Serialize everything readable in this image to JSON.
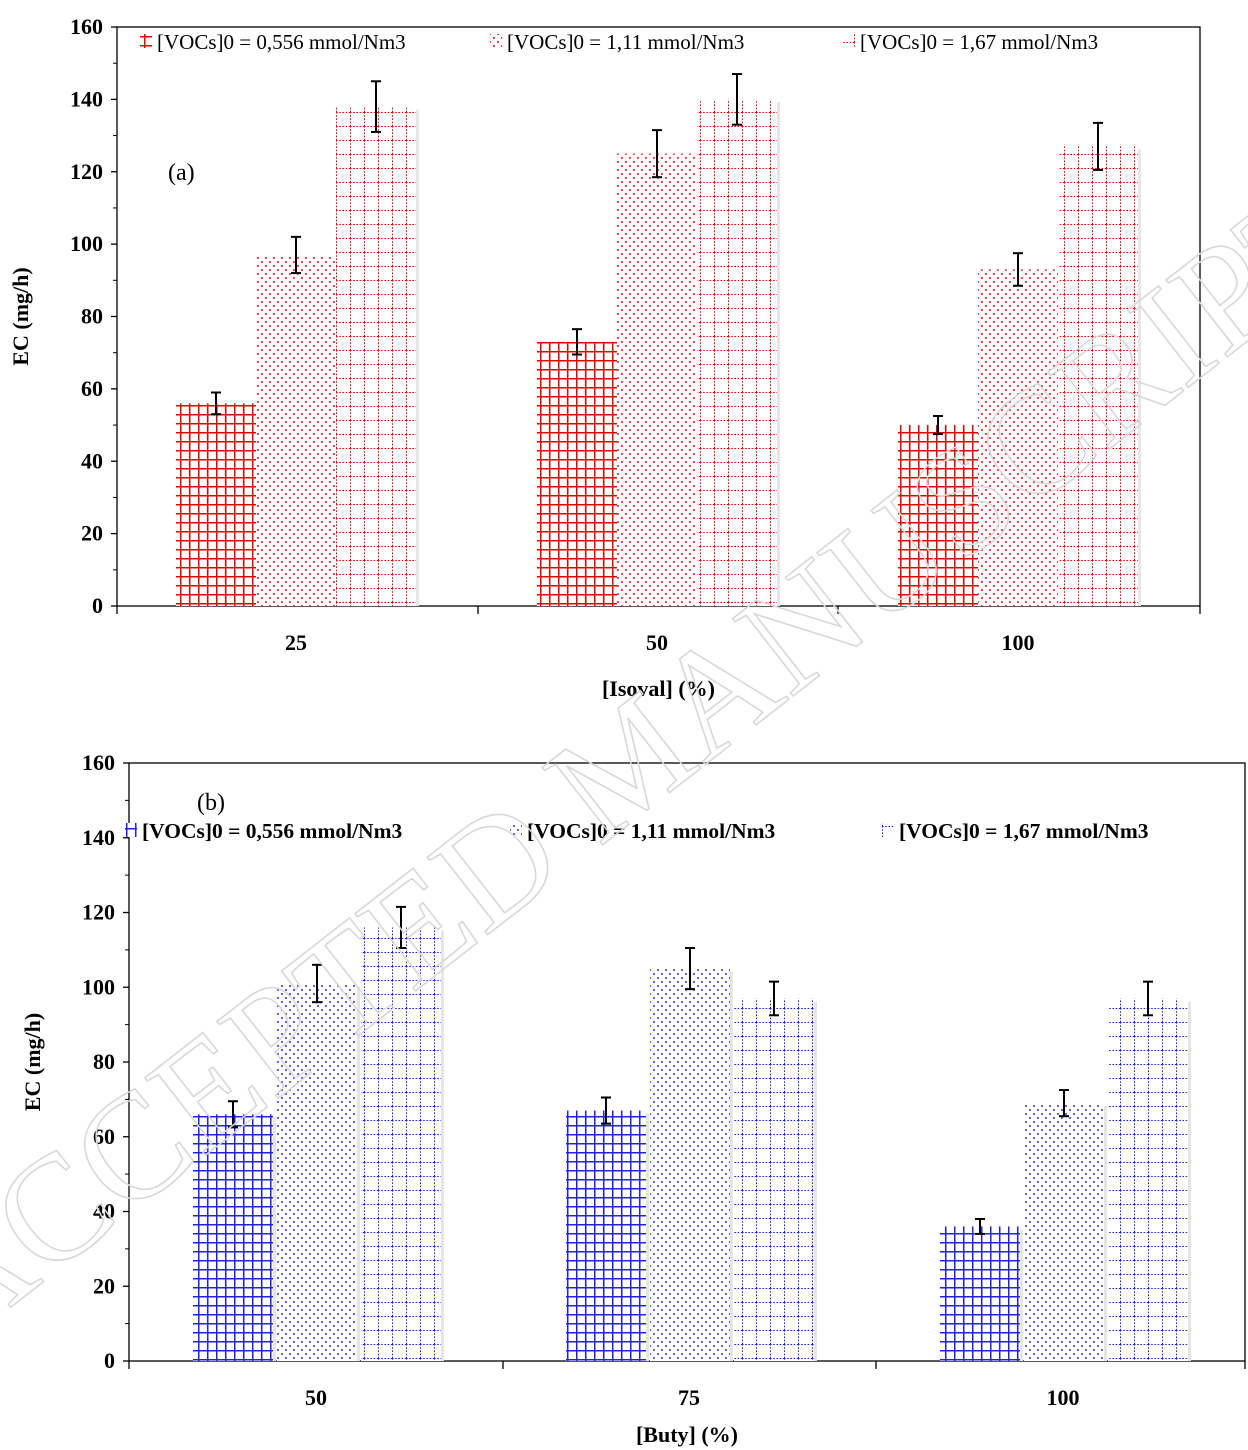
{
  "watermark": "ACCEPTED MANUSCRIPT",
  "chart_data": [
    {
      "type": "bar",
      "panel_label": "(a)",
      "xlabel": "[Isoval] (%)",
      "ylabel": "EC (mg/h)",
      "ylim": [
        0,
        160
      ],
      "yticks": [
        0,
        20,
        40,
        60,
        80,
        100,
        120,
        140,
        160
      ],
      "categories": [
        "25",
        "50",
        "100"
      ],
      "legend_bold": false,
      "legend_position": "top",
      "colors": [
        "#e00000",
        "#e00000",
        "#e00000"
      ],
      "series": [
        {
          "name": "[VOCs]0 = 0,556 mmol/Nm3",
          "pattern": "grid-dense",
          "values": [
            56,
            73,
            50
          ],
          "errors": [
            3,
            3.5,
            2.5
          ]
        },
        {
          "name": "[VOCs]0 = 1,11 mmol/Nm3",
          "pattern": "dots",
          "values": [
            97,
            125,
            93
          ],
          "errors": [
            5,
            6.5,
            4.5
          ]
        },
        {
          "name": "[VOCs]0 = 1,67 mmol/Nm3",
          "pattern": "grid-dotted",
          "values": [
            138,
            140,
            127
          ],
          "errors": [
            7,
            7,
            6.5
          ]
        }
      ]
    },
    {
      "type": "bar",
      "panel_label": "(b)",
      "xlabel": "[Buty] (%)",
      "ylabel": "EC (mg/h)",
      "ylim": [
        0,
        160
      ],
      "yticks": [
        0,
        20,
        40,
        60,
        80,
        100,
        120,
        140,
        160
      ],
      "categories": [
        "50",
        "75",
        "100"
      ],
      "legend_bold": true,
      "legend_position": "top",
      "colors": [
        "#2222dd",
        "#2222dd",
        "#2222dd"
      ],
      "series": [
        {
          "name": "[VOCs]0 = 0,556 mmol/Nm3",
          "pattern": "grid-dense",
          "values": [
            66,
            67,
            36
          ],
          "errors": [
            3.5,
            3.5,
            2
          ]
        },
        {
          "name": "[VOCs]0 = 1,11 mmol/Nm3",
          "pattern": "dots",
          "values": [
            101,
            105,
            69
          ],
          "errors": [
            5,
            5.5,
            3.5
          ]
        },
        {
          "name": "[VOCs]0 = 1,67 mmol/Nm3",
          "pattern": "grid-dotted",
          "values": [
            116,
            97,
            97
          ],
          "errors": [
            5.5,
            4.5,
            4.5
          ]
        }
      ]
    }
  ]
}
